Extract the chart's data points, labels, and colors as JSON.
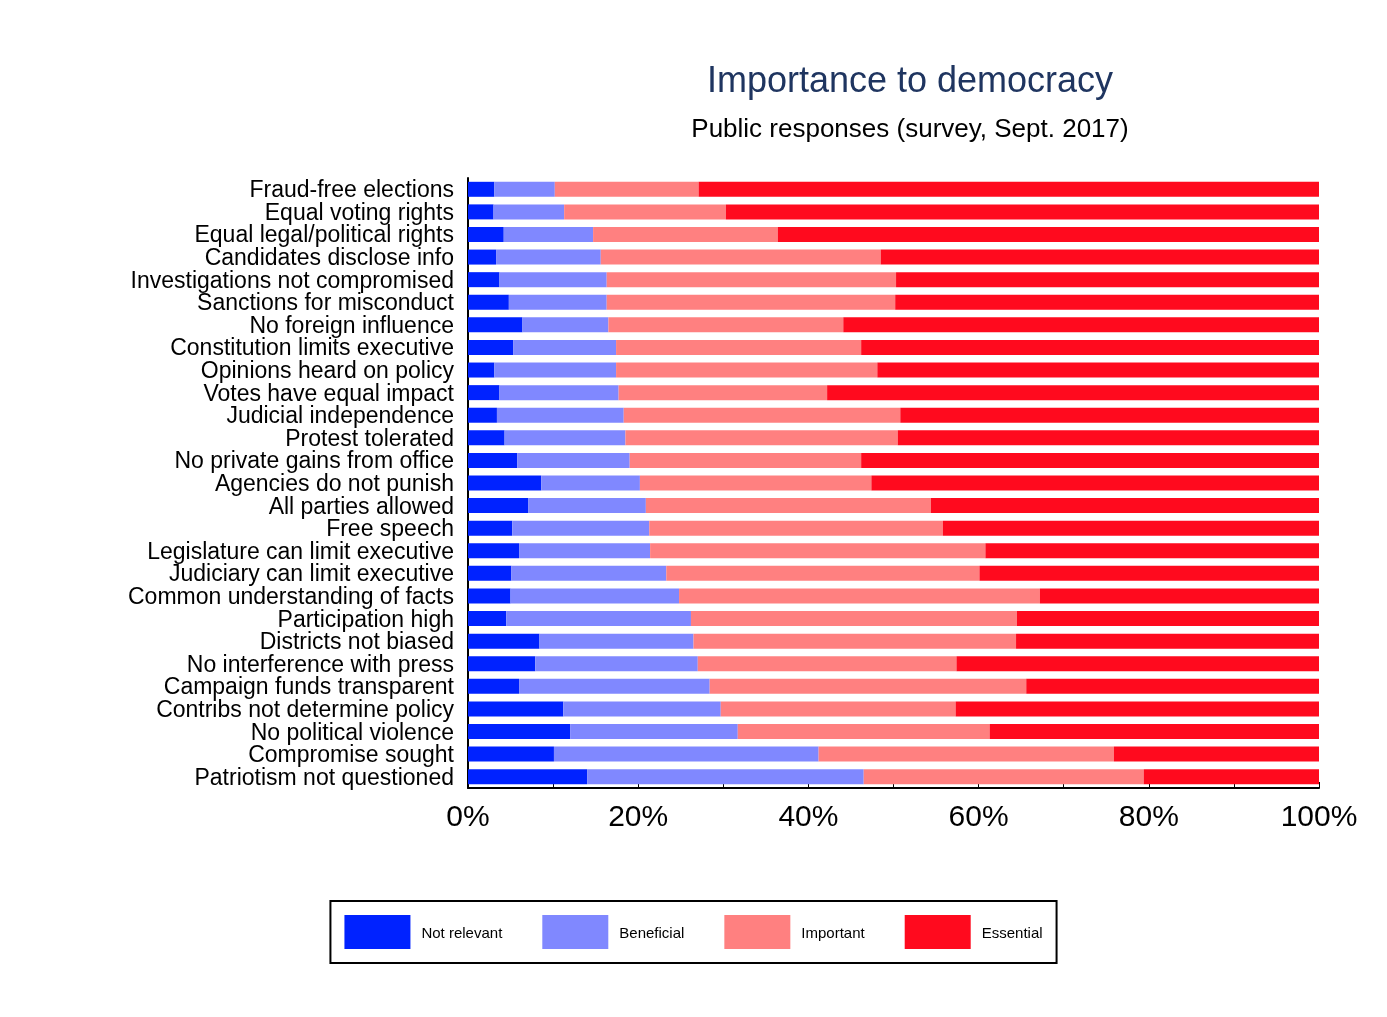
{
  "chart_data": {
    "type": "bar",
    "orientation": "horizontal",
    "stacked": true,
    "title": "Importance to democracy",
    "subtitle": "Public responses (survey, Sept. 2017)",
    "categories": [
      "Fraud-free elections",
      "Equal voting rights",
      "Equal legal/political rights",
      "Candidates disclose info",
      "Investigations not compromised",
      "Sanctions for misconduct",
      "No foreign influence",
      "Constitution limits executive",
      "Opinions heard on policy",
      "Votes have equal impact",
      "Judicial independence",
      "Protest tolerated",
      "No private gains from office",
      "Agencies do not punish",
      "All parties allowed",
      "Free speech",
      "Legislature can limit executive",
      "Judiciary can limit executive",
      "Common understanding of facts",
      "Participation high",
      "Districts not biased",
      "No interference with press",
      "Campaign funds transparent",
      "Contribs not determine policy",
      "No political violence",
      "Compromise sought",
      "Patriotism not questioned"
    ],
    "series": [
      {
        "name": "Not relevant",
        "color": "#0022ff",
        "values": [
          3.1,
          3.0,
          4.2,
          3.3,
          3.7,
          4.8,
          6.4,
          5.3,
          3.1,
          3.7,
          3.4,
          4.3,
          5.8,
          8.6,
          7.1,
          5.2,
          6.0,
          5.1,
          5.0,
          4.5,
          8.4,
          7.9,
          6.0,
          11.2,
          12.0,
          10.1,
          14.0
        ]
      },
      {
        "name": "Beneficial",
        "color": "#8088ff",
        "values": [
          7.1,
          8.3,
          10.5,
          12.3,
          12.6,
          11.5,
          10.1,
          12.1,
          14.3,
          14.0,
          14.9,
          14.2,
          13.2,
          11.6,
          13.8,
          16.1,
          15.4,
          18.2,
          19.8,
          21.7,
          18.1,
          19.1,
          22.4,
          18.5,
          19.7,
          31.1,
          32.5
        ]
      },
      {
        "name": "Important",
        "color": "#ff8080",
        "values": [
          16.9,
          19.0,
          21.7,
          32.9,
          34.0,
          33.9,
          27.6,
          28.8,
          30.7,
          24.5,
          32.5,
          32.0,
          27.2,
          27.2,
          33.5,
          34.5,
          39.4,
          36.8,
          42.4,
          38.3,
          37.9,
          30.4,
          37.2,
          27.6,
          29.6,
          34.7,
          32.9
        ]
      },
      {
        "name": "Essential",
        "color": "#ff0a1e",
        "values": [
          72.9,
          69.7,
          63.6,
          51.5,
          49.7,
          49.8,
          55.9,
          53.8,
          51.9,
          57.8,
          49.2,
          49.5,
          53.8,
          52.6,
          45.6,
          44.2,
          39.2,
          39.9,
          32.8,
          35.5,
          35.6,
          42.6,
          34.4,
          42.7,
          38.7,
          24.1,
          20.6
        ]
      }
    ],
    "xlim": [
      0,
      100
    ],
    "xticks": [
      {
        "value": 0,
        "label": "0%"
      },
      {
        "value": 10,
        "label": null
      },
      {
        "value": 20,
        "label": "20%"
      },
      {
        "value": 30,
        "label": null
      },
      {
        "value": 40,
        "label": "40%"
      },
      {
        "value": 50,
        "label": null
      },
      {
        "value": 60,
        "label": "60%"
      },
      {
        "value": 70,
        "label": null
      },
      {
        "value": 80,
        "label": "80%"
      },
      {
        "value": 90,
        "label": null
      },
      {
        "value": 100,
        "label": "100%"
      }
    ],
    "grid": false,
    "legend": "bottom"
  }
}
